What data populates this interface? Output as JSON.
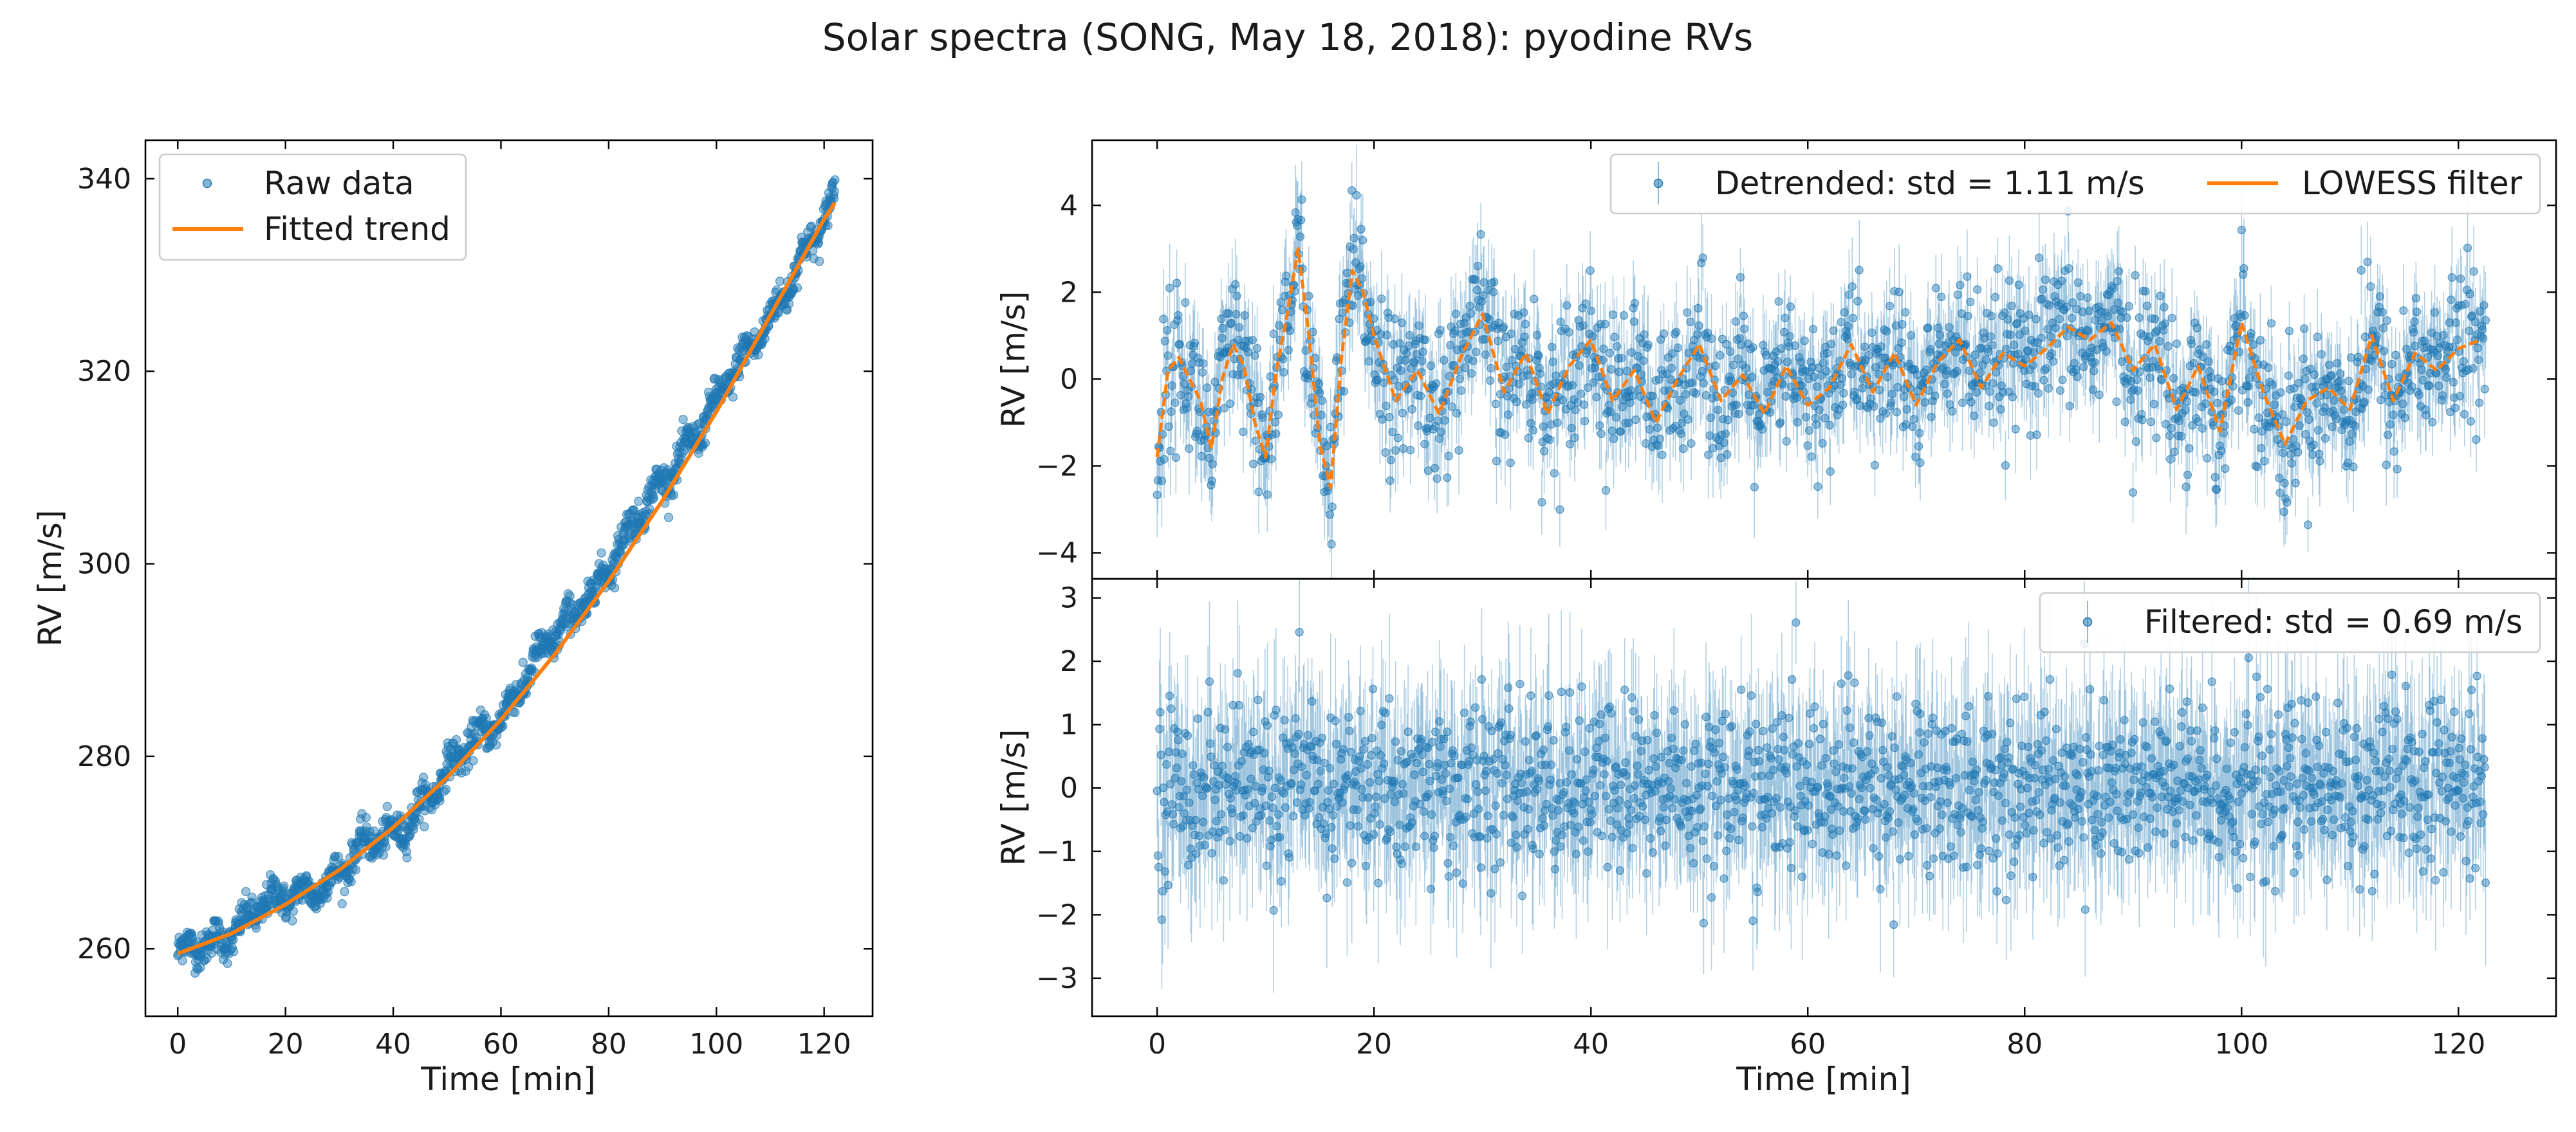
{
  "figure": {
    "title": "Solar spectra (SONG, May 18, 2018): pyodine RVs"
  },
  "colors": {
    "points": "#1f77b4",
    "trend": "#ff7f0e"
  },
  "chart_data": [
    {
      "type": "scatter",
      "panel": "left",
      "xlabel": "Time [min]",
      "ylabel": "RV [m/s]",
      "xlim": [
        -6,
        129
      ],
      "ylim": [
        253,
        344
      ],
      "xticks": [
        0,
        20,
        40,
        60,
        80,
        100,
        120
      ],
      "yticks": [
        260,
        280,
        300,
        320,
        340
      ],
      "xtick_labels": [
        "0",
        "20",
        "40",
        "60",
        "80",
        "100",
        "120"
      ],
      "ytick_labels": [
        "260",
        "280",
        "300",
        "320",
        "340"
      ],
      "legend": {
        "placement": "top-left",
        "entries": [
          "Raw data",
          "Fitted trend"
        ]
      },
      "series": [
        {
          "name": "Raw data",
          "kind": "points",
          "x": [
            0,
            5,
            10,
            15,
            20,
            25,
            30,
            35,
            40,
            45,
            50,
            55,
            60,
            65,
            70,
            75,
            80,
            85,
            90,
            95,
            100,
            105,
            110,
            115,
            120,
            122
          ],
          "values": [
            259,
            260.5,
            262,
            264,
            265,
            266.5,
            268,
            270.5,
            272,
            275,
            278,
            281.5,
            284.5,
            288.5,
            292,
            296,
            300,
            304,
            308.5,
            313,
            316.5,
            321,
            326,
            331,
            335,
            338
          ]
        },
        {
          "name": "Fitted trend",
          "kind": "line",
          "x": [
            0,
            10,
            20,
            30,
            40,
            50,
            60,
            70,
            80,
            90,
            100,
            110,
            120,
            122
          ],
          "values": [
            259.5,
            261.6,
            264.6,
            268.2,
            272.6,
            277.8,
            283.8,
            290.6,
            298.2,
            306.6,
            315.8,
            325.8,
            335.8,
            337.5
          ]
        }
      ]
    },
    {
      "type": "scatter",
      "panel": "top-right",
      "xlabel": "",
      "ylabel": "RV [m/s]",
      "xlim": [
        -6,
        129
      ],
      "ylim": [
        -4.6,
        5.5
      ],
      "xticks": [
        0,
        20,
        40,
        60,
        80,
        100,
        120
      ],
      "yticks": [
        -4,
        -2,
        0,
        2,
        4
      ],
      "ytick_labels": [
        "−4",
        "−2",
        "0",
        "2",
        "4"
      ],
      "legend": {
        "placement": "top-right",
        "columns": 2,
        "entries": [
          "Detrended: std = 1.11 m/s",
          "LOWESS filter"
        ]
      },
      "series": [
        {
          "name": "Detrended: std = 1.11 m/s",
          "kind": "points-with-errorbars",
          "n_points": 1700,
          "std": 1.11,
          "error": 0.9
        },
        {
          "name": "LOWESS filter",
          "kind": "line",
          "x": [
            0,
            1,
            2,
            3,
            4,
            5,
            6,
            7,
            8,
            9,
            10,
            11,
            12,
            13,
            14,
            15,
            16,
            17,
            18,
            19,
            20,
            22,
            24,
            26,
            28,
            30,
            32,
            34,
            36,
            38,
            40,
            42,
            44,
            46,
            48,
            50,
            52,
            54,
            56,
            58,
            60,
            62,
            64,
            66,
            68,
            70,
            72,
            74,
            76,
            78,
            80,
            82,
            84,
            86,
            88,
            90,
            92,
            94,
            96,
            98,
            100,
            102,
            104,
            106,
            108,
            110,
            112,
            114,
            116,
            118,
            120,
            122
          ],
          "values": [
            -1.8,
            0.2,
            0.5,
            0.0,
            -0.5,
            -1.6,
            0.0,
            0.8,
            0.3,
            -1.0,
            -1.8,
            0.2,
            1.5,
            3.0,
            1.0,
            -1.5,
            -2.5,
            0.5,
            2.5,
            2.0,
            1.0,
            -0.5,
            0.2,
            -0.8,
            0.5,
            1.5,
            -0.3,
            0.6,
            -0.8,
            0.3,
            0.9,
            -0.5,
            0.2,
            -1.0,
            0.0,
            0.8,
            -0.5,
            0.1,
            -0.8,
            0.3,
            -0.6,
            -0.2,
            0.8,
            -0.3,
            0.6,
            -0.6,
            0.4,
            0.9,
            -0.2,
            0.6,
            0.3,
            0.7,
            1.2,
            0.9,
            1.3,
            0.2,
            0.8,
            -0.7,
            0.3,
            -1.2,
            1.3,
            -0.3,
            -1.5,
            -0.5,
            -0.2,
            -0.7,
            1.0,
            -0.5,
            0.6,
            0.2,
            0.7,
            0.9
          ]
        }
      ]
    },
    {
      "type": "scatter",
      "panel": "bottom-right",
      "xlabel": "Time [min]",
      "ylabel": "RV [m/s]",
      "xlim": [
        -6,
        129
      ],
      "ylim": [
        -3.6,
        3.3
      ],
      "xticks": [
        0,
        20,
        40,
        60,
        80,
        100,
        120
      ],
      "yticks": [
        -3,
        -2,
        -1,
        0,
        1,
        2,
        3
      ],
      "xtick_labels": [
        "0",
        "20",
        "40",
        "60",
        "80",
        "100",
        "120"
      ],
      "ytick_labels": [
        "−3",
        "−2",
        "−1",
        "0",
        "1",
        "2",
        "3"
      ],
      "legend": {
        "placement": "top-right",
        "entries": [
          "Filtered: std = 0.69 m/s"
        ]
      },
      "series": [
        {
          "name": "Filtered: std = 0.69 m/s",
          "kind": "points-with-errorbars",
          "n_points": 1700,
          "std": 0.69,
          "error": 1.0
        }
      ]
    }
  ]
}
